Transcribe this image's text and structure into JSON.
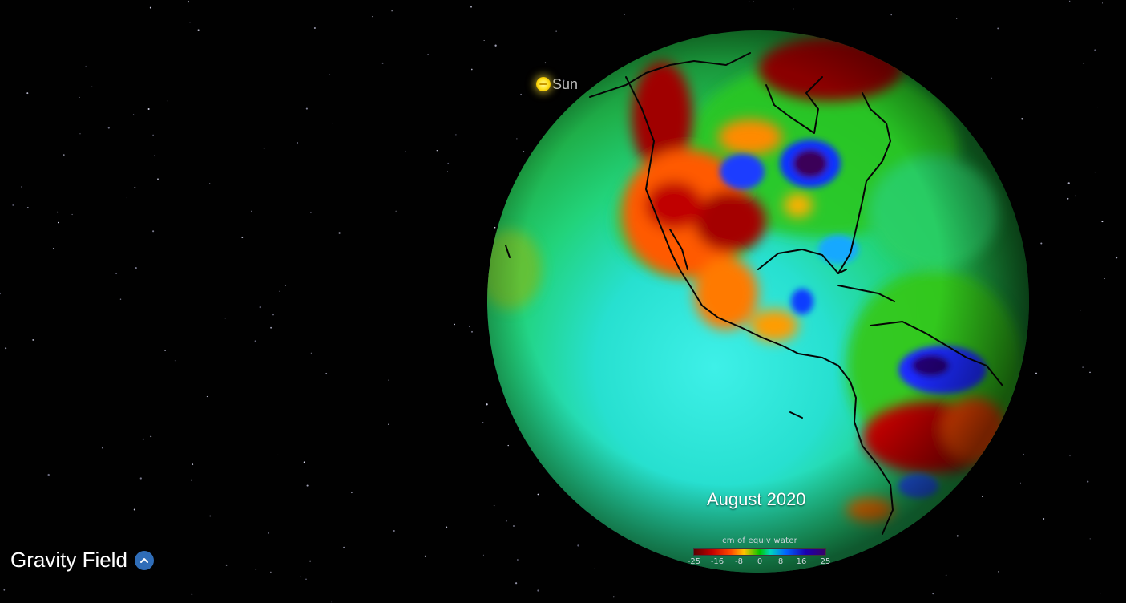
{
  "sun": {
    "label": "Sun",
    "icon": "sun-icon",
    "color": "#ffe52a"
  },
  "globe": {
    "date": "August 2020"
  },
  "legend": {
    "title": "cm of equiv water",
    "ticks": [
      "-25",
      "-16",
      "-8",
      "0",
      "8",
      "16",
      "25"
    ]
  },
  "feature": {
    "title": "Gravity Field",
    "toggle_icon": "chevron-up-icon",
    "accent": "#2f6db8"
  }
}
